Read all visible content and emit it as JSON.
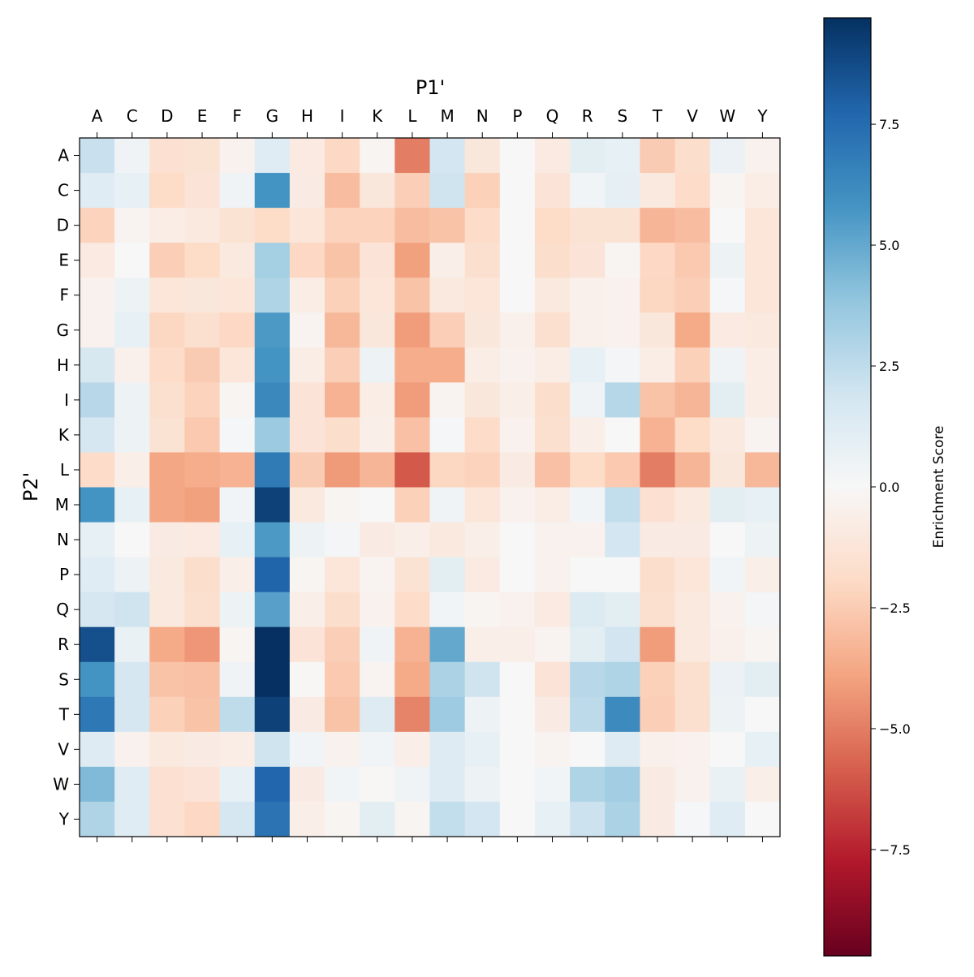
{
  "chart_data": {
    "type": "heatmap",
    "xlabel": "P1'",
    "ylabel": "P2'",
    "x_categories": [
      "A",
      "C",
      "D",
      "E",
      "F",
      "G",
      "H",
      "I",
      "K",
      "L",
      "M",
      "N",
      "P",
      "Q",
      "R",
      "S",
      "T",
      "V",
      "W",
      "Y"
    ],
    "y_categories": [
      "A",
      "C",
      "D",
      "E",
      "F",
      "G",
      "H",
      "I",
      "K",
      "L",
      "M",
      "N",
      "P",
      "Q",
      "R",
      "S",
      "T",
      "V",
      "W",
      "Y"
    ],
    "colormap": "RdBu",
    "vmin": -9.7,
    "vmax": 9.7,
    "colorbar": {
      "label": "Enrichment Score",
      "ticks": [
        7.5,
        5.0,
        2.5,
        0.0,
        -2.5,
        -5.0,
        -7.5
      ],
      "tick_labels": [
        "7.5",
        "5.0",
        "2.5",
        "0.0",
        "−2.5",
        "−5.0",
        "−7.5"
      ]
    },
    "values": [
      [
        2.2,
        0.4,
        -1.5,
        -1.4,
        -0.4,
        1.2,
        -0.9,
        -2.0,
        -0.2,
        -5.0,
        1.8,
        -1.1,
        0,
        -0.9,
        1.0,
        0.8,
        -2.5,
        -1.7,
        0.6,
        -0.4
      ],
      [
        1.2,
        0.8,
        -1.9,
        -1.3,
        0.4,
        5.8,
        -0.8,
        -3.0,
        -1.1,
        -2.4,
        2.0,
        -2.3,
        0,
        -1.3,
        0.3,
        0.9,
        -1.0,
        -1.8,
        -0.2,
        -0.7
      ],
      [
        -2.2,
        -0.3,
        -0.7,
        -1.0,
        -1.4,
        -1.9,
        -1.2,
        -2.2,
        -2.2,
        -3.0,
        -2.8,
        -1.8,
        0,
        -1.9,
        -1.4,
        -1.4,
        -3.3,
        -3.0,
        0,
        -1.2
      ],
      [
        -0.9,
        0,
        -2.4,
        -1.9,
        -1.0,
        3.3,
        -2.0,
        -2.8,
        -1.3,
        -4.0,
        -0.6,
        -1.6,
        0,
        -1.7,
        -1.3,
        -0.2,
        -2.0,
        -2.6,
        0.5,
        -1.2
      ],
      [
        -0.4,
        0.5,
        -1.2,
        -1.1,
        -1.2,
        3.0,
        -0.7,
        -2.3,
        -1.2,
        -2.8,
        -1.0,
        -1.2,
        0,
        -1.0,
        -0.5,
        -0.4,
        -2.1,
        -2.4,
        0.1,
        -1.2
      ],
      [
        -0.4,
        0.8,
        -2.1,
        -1.6,
        -2.0,
        5.6,
        -0.3,
        -3.2,
        -1.1,
        -4.1,
        -2.4,
        -1.1,
        -0.5,
        -1.6,
        -0.5,
        -0.4,
        -1.1,
        -3.7,
        -0.9,
        -1.0
      ],
      [
        1.6,
        -0.5,
        -1.8,
        -2.5,
        -1.2,
        5.8,
        -0.7,
        -2.4,
        0.5,
        -3.6,
        -3.6,
        -0.7,
        -0.4,
        -0.7,
        0.8,
        0.2,
        -0.7,
        -2.3,
        0.4,
        -0.7
      ],
      [
        2.7,
        0.5,
        -1.6,
        -2.2,
        -0.2,
        6.3,
        -1.3,
        -3.4,
        -0.7,
        -4.1,
        -0.3,
        -1.1,
        -0.6,
        -1.7,
        0.4,
        2.8,
        -2.8,
        -3.3,
        1.0,
        -0.7
      ],
      [
        1.7,
        0.5,
        -1.4,
        -2.6,
        0.1,
        3.6,
        -1.3,
        -1.7,
        -0.6,
        -2.9,
        0.1,
        -1.8,
        -0.4,
        -1.6,
        -0.6,
        0.0,
        -3.4,
        -1.9,
        -1.0,
        -0.3
      ],
      [
        -1.8,
        -0.6,
        -3.8,
        -3.6,
        -3.4,
        6.9,
        -2.5,
        -4.2,
        -3.3,
        -6.0,
        -2.1,
        -2.2,
        -0.8,
        -2.9,
        -1.9,
        -2.6,
        -5.0,
        -3.3,
        -1.1,
        -3.2
      ],
      [
        5.8,
        0.8,
        -3.8,
        -4.0,
        0.3,
        9.1,
        -1.0,
        -0.2,
        0.0,
        -2.3,
        0.4,
        -1.2,
        -0.4,
        -0.7,
        0.3,
        2.4,
        -1.5,
        -1.0,
        1.0,
        0.8
      ],
      [
        0.8,
        0.0,
        -0.8,
        -0.9,
        0.8,
        5.6,
        0.5,
        0.2,
        -0.8,
        -0.6,
        -1.0,
        -0.6,
        0,
        -0.4,
        -0.4,
        1.8,
        -0.8,
        -0.8,
        0,
        0.5
      ],
      [
        1.2,
        0.5,
        -1.0,
        -1.7,
        -0.6,
        7.8,
        -0.2,
        -1.2,
        -0.3,
        -1.4,
        1.0,
        -0.9,
        0,
        -0.4,
        0,
        0,
        -1.7,
        -1.2,
        0.3,
        -0.6
      ],
      [
        1.7,
        2.0,
        -1.0,
        -1.6,
        0.5,
        5.3,
        -0.6,
        -1.7,
        -0.4,
        -1.8,
        0.3,
        -0.2,
        -0.4,
        -0.9,
        1.4,
        1.0,
        -1.6,
        -1.0,
        -0.4,
        0.2
      ],
      [
        8.6,
        0.7,
        -3.7,
        -4.3,
        -0.2,
        9.7,
        -1.3,
        -2.4,
        0.4,
        -3.4,
        5.0,
        -0.6,
        -0.6,
        -0.3,
        1.0,
        1.9,
        -4.1,
        -1.0,
        -0.5,
        -0.2
      ],
      [
        5.8,
        1.7,
        -2.8,
        -2.9,
        0.4,
        9.7,
        -0.1,
        -2.6,
        -0.3,
        -3.7,
        3.1,
        2.0,
        0,
        -1.3,
        2.7,
        3.0,
        -2.3,
        -1.6,
        0.6,
        1.0
      ],
      [
        7.0,
        1.7,
        -2.3,
        -2.8,
        2.5,
        9.1,
        -0.8,
        -2.8,
        1.3,
        -4.8,
        3.5,
        0.5,
        0,
        -0.8,
        2.6,
        6.2,
        -2.4,
        -1.6,
        0.5,
        0
      ],
      [
        1.3,
        -0.4,
        -1.0,
        -0.8,
        -0.7,
        2.0,
        0.3,
        -0.4,
        0.3,
        -0.6,
        1.3,
        0.8,
        0,
        -0.3,
        0,
        1.3,
        -0.5,
        -0.4,
        0,
        0.8
      ],
      [
        4.3,
        1.2,
        -1.5,
        -1.3,
        0.8,
        7.7,
        -0.8,
        0.3,
        -0.1,
        0.4,
        1.3,
        0.5,
        0,
        0.3,
        3.0,
        3.4,
        -0.8,
        -0.4,
        0.7,
        -0.6
      ],
      [
        3.0,
        1.2,
        -1.5,
        -2.0,
        1.7,
        7.2,
        -0.6,
        -0.2,
        1.0,
        -0.2,
        2.4,
        1.8,
        0,
        0.8,
        2.1,
        3.1,
        -0.8,
        0.1,
        1.2,
        0
      ]
    ],
    "grid": false
  }
}
